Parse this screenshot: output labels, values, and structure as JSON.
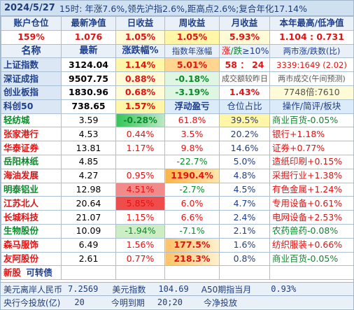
{
  "header": {
    "date": "2024/5/27",
    "summary": "15时: 年涨7.6%,领先沪指2.6%,距高点2.6%;复合年化17.14%"
  },
  "account": {
    "labels": [
      "账户仓位",
      "最新净值",
      "日收益",
      "周收益",
      "月收益",
      "本年最高/低净值"
    ],
    "values": [
      "159%",
      "1.076",
      "1.05%",
      "1.05%",
      "5.93%",
      "1.104 : 0.731"
    ]
  },
  "index_header": {
    "name": "名称",
    "latest": "最新",
    "change": "涨跌幅%",
    "year": "指数年涨幅",
    "updown_prefix": "涨",
    "updown_mid": "/跌",
    "updown_suffix": "≥10%",
    "marketcap": "两市涨/跌数(比)"
  },
  "indices": [
    {
      "name": "上证指数",
      "latest": "3124.04",
      "change": "1.14%",
      "year": "5.01%",
      "c5": "58 ： 24",
      "c6": "3339:1649 (2.02)"
    },
    {
      "name": "深证成指",
      "latest": "9507.75",
      "change": "0.88%",
      "year": "-0.18%",
      "c5": "成交额较昨日",
      "c6": "两市成交(午间预测)"
    },
    {
      "name": "创业板指",
      "latest": "1830.96",
      "change": "0.68%",
      "year": "-3.19%",
      "c5": "1.43%",
      "c6": "7748倍:7610"
    },
    {
      "name": "科创50",
      "latest": "738.65",
      "change": "1.57%",
      "year": "浮动盈亏",
      "c5": "仓位占比",
      "c6": "操作/简评/板块"
    }
  ],
  "stocks": [
    {
      "name": "轻纺城",
      "latest": "3.59",
      "change": "-0.28%",
      "pnl": "61.8%",
      "pos": "39.5%",
      "note": "商业百货-0.05%"
    },
    {
      "name": "张家港行",
      "latest": "4.53",
      "change": "0.44%",
      "pnl": "3.5%",
      "pos": "20.2%",
      "note": "银行+1.18%"
    },
    {
      "name": "华泰证券",
      "latest": "13.81",
      "change": "1.17%",
      "pnl": "9.8%",
      "pos": "14.6%",
      "note": "证券+0.77%"
    },
    {
      "name": "岳阳林纸",
      "latest": "4.85",
      "change": "",
      "pnl": "-22.7%",
      "pos": "5.0%",
      "note": "造纸印刷+0.15%"
    },
    {
      "name": "海油发展",
      "latest": "4.27",
      "change": "0.95%",
      "pnl": "1190.4%",
      "pos": "4.8%",
      "note": "采掘行业+1.38%"
    },
    {
      "name": "明泰铝业",
      "latest": "12.98",
      "change": "4.51%",
      "pnl": "-2.7%",
      "pos": "4.5%",
      "note": "有色金属+1.24%"
    },
    {
      "name": "江苏北人",
      "latest": "20.64",
      "change": "5.85%",
      "pnl": "6.0%",
      "pos": "4.7%",
      "note": "专用设备+0.61%"
    },
    {
      "name": "长城科技",
      "latest": "21.07",
      "change": "1.15%",
      "pnl": "6.6%",
      "pos": "2.4%",
      "note": "电网设备+2.53%"
    },
    {
      "name": "生物股份",
      "latest": "10.09",
      "change": "-1.94%",
      "pnl": "-7.1%",
      "pos": "2.1%",
      "note": "农药兽药-0.08%"
    },
    {
      "name": "森马服饰",
      "latest": "6.49",
      "change": "1.56%",
      "pnl": "177.5%",
      "pos": "1.6%",
      "note": "纺织服装+0.66%"
    },
    {
      "name": "友阿股份",
      "latest": "2.61",
      "change": "0.77%",
      "pnl": "218.3%",
      "pos": "0.8%",
      "note": "商业百货-0.05%"
    }
  ],
  "new_row": {
    "label1": "新股",
    "label2": "可转债"
  },
  "footer1": {
    "a_label": "美元离岸人民币",
    "a_value": "7.2569",
    "b_label": "美元指数",
    "b_value": "104.69",
    "c_label": "A50期指当月",
    "c_value": "0.93%"
  },
  "footer2": {
    "a_label": "央行今投放(亿)",
    "a_value": "20",
    "b_label": "今明到期",
    "b_value": "20;20",
    "c_label": "今净投放"
  },
  "colors": {
    "up": "#e01414",
    "down": "#0a8a2a",
    "header_bg": "#cfe0f1",
    "border": "#a9bfd4"
  }
}
